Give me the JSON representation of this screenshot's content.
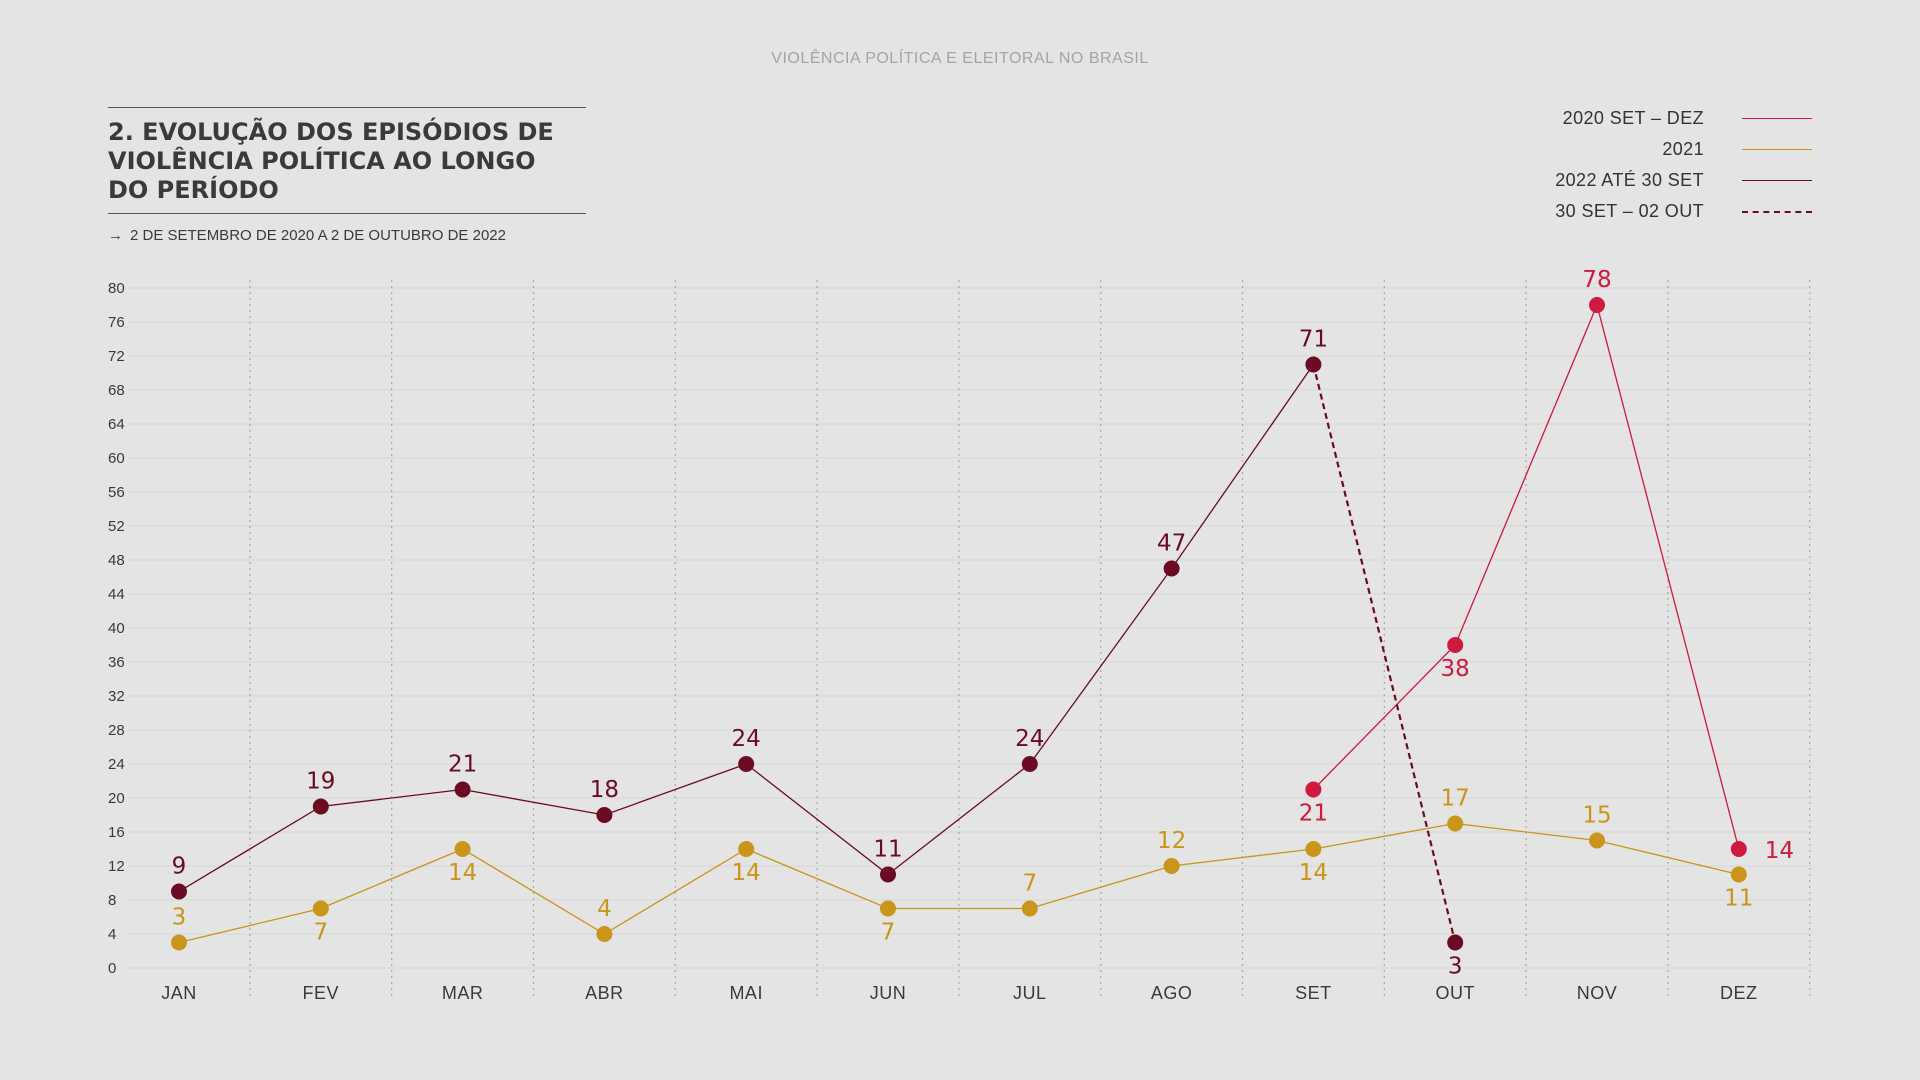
{
  "header": "VIOLÊNCIA POLÍTICA E ELEITORAL NO BRASIL",
  "legend": [
    {
      "label": "2020 SET – DEZ",
      "color": "#d0193e",
      "dash": false
    },
    {
      "label": "2021",
      "color": "#c9951a",
      "dash": false
    },
    {
      "label": "2022 ATÉ 30 SET",
      "color": "#6b0a23",
      "dash": false
    },
    {
      "label": "30 SET – 02 OUT",
      "color": "#6b0a23",
      "dash": true
    }
  ],
  "chart_data": {
    "type": "line",
    "title": "2. EVOLUÇÃO DOS EPISÓDIOS DE\nVIOLÊNCIA POLÍTICA AO LONGO\nDO PERÍODO",
    "subtitle": "2 DE SETEMBRO DE 2020 A 2 DE OUTUBRO DE 2022",
    "categories": [
      "JAN",
      "FEV",
      "MAR",
      "ABR",
      "MAI",
      "JUN",
      "JUL",
      "AGO",
      "SET",
      "OUT",
      "NOV",
      "DEZ"
    ],
    "ylim": [
      0,
      80
    ],
    "yticks": [
      0,
      4,
      8,
      12,
      16,
      20,
      24,
      28,
      32,
      36,
      40,
      44,
      48,
      52,
      56,
      60,
      64,
      68,
      72,
      76,
      80
    ],
    "grid": true,
    "legend_position": "top-right",
    "series": [
      {
        "name": "2020 SET – DEZ",
        "color": "#d0193e",
        "values": [
          null,
          null,
          null,
          null,
          null,
          null,
          null,
          null,
          21,
          38,
          78,
          14
        ],
        "label_pos": [
          null,
          null,
          null,
          null,
          null,
          null,
          null,
          null,
          "below",
          "below",
          "above",
          "right"
        ]
      },
      {
        "name": "2021",
        "color": "#c9951a",
        "values": [
          3,
          7,
          14,
          4,
          14,
          7,
          7,
          12,
          14,
          17,
          15,
          11
        ],
        "label_pos": [
          "above",
          "below",
          "below",
          "above",
          "below",
          "below",
          "above",
          "above",
          "below",
          "above",
          "above",
          "below"
        ]
      },
      {
        "name": "2022 ATÉ 30 SET",
        "color": "#6b0a23",
        "values": [
          9,
          19,
          21,
          18,
          24,
          11,
          24,
          47,
          71,
          null,
          null,
          null
        ],
        "label_pos": [
          "above",
          "above",
          "above",
          "above",
          "above",
          "above",
          "above",
          "above",
          "above",
          null,
          null,
          null
        ]
      },
      {
        "name": "30 SET – 02 OUT",
        "color": "#6b0a23",
        "dashed": true,
        "values": [
          null,
          null,
          null,
          null,
          null,
          null,
          null,
          null,
          71,
          3,
          null,
          null
        ],
        "label_pos": [
          null,
          null,
          null,
          null,
          null,
          null,
          null,
          null,
          null,
          "below",
          null,
          null
        ]
      }
    ]
  }
}
